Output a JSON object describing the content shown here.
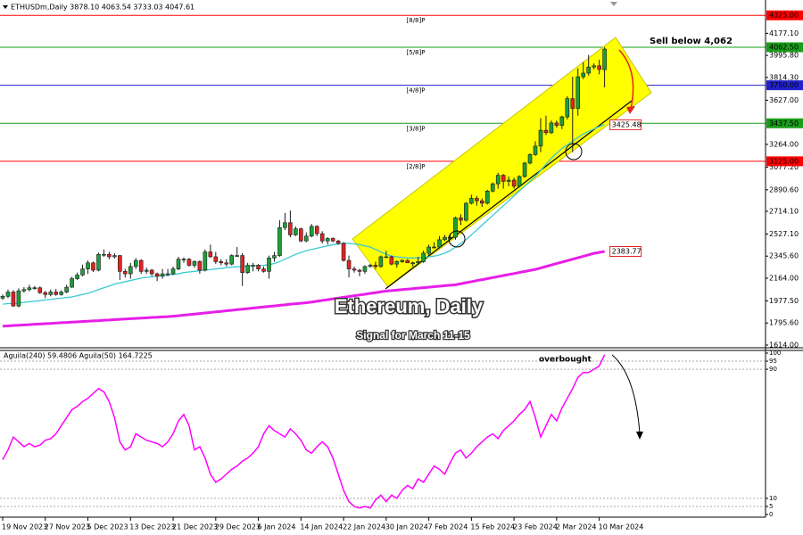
{
  "chart_data": {
    "type": "candlestick",
    "header": "ETHUSDm,Daily  3878.10 4063.54 3733.03 4047.61",
    "title": "Ethereum, Daily",
    "subtitle": "Signal for March 11-15",
    "annotations": {
      "sell": "Sell below 4,062",
      "overbought": "overbought"
    },
    "up_color": "#1e9e3a",
    "down_color": "#e02424",
    "ylim": [
      1592,
      4451
    ],
    "yticks": [
      {
        "value": 1614,
        "label": "1614.00"
      },
      {
        "value": 1795.6,
        "label": "1795.60"
      },
      {
        "value": 1977.5,
        "label": "1977.50"
      },
      {
        "value": 2164,
        "label": "2164.00"
      },
      {
        "value": 2345.6,
        "label": "2345.60"
      },
      {
        "value": 2527.1,
        "label": "2527.10"
      },
      {
        "value": 2714.1,
        "label": "2714.10"
      },
      {
        "value": 2890.6,
        "label": "2890.60"
      },
      {
        "value": 3077.2,
        "label": "3077.20"
      },
      {
        "value": 3264,
        "label": "3264.00"
      },
      {
        "value": 3627,
        "label": "3627.00"
      },
      {
        "value": 3814.3,
        "label": "3814.30"
      },
      {
        "value": 3995.8,
        "label": "3995.80"
      },
      {
        "value": 4177.1,
        "label": "4177.10"
      }
    ],
    "levels": [
      {
        "name": "[8/8]P",
        "value": 4325,
        "label": "4325.00",
        "color": "#ff0000"
      },
      {
        "name": "[5/8]P",
        "value": 4062.5,
        "label": "4062.50",
        "color": "#1a9c1a"
      },
      {
        "name": "[4/8]P",
        "value": 3750,
        "label": "3750.00",
        "color": "#2222cc"
      },
      {
        "name": "[3/8]P",
        "value": 3437.5,
        "label": "3437.50",
        "color": "#1a9c1a"
      },
      {
        "name": "[2/8]P",
        "value": 3125,
        "label": "3125.00",
        "color": "#ff0000"
      }
    ],
    "x": [
      "19 Nov 2023",
      "20 Nov 2023",
      "21 Nov 2023",
      "22 Nov 2023",
      "23 Nov 2023",
      "24 Nov 2023",
      "25 Nov 2023",
      "26 Nov 2023",
      "27 Nov 2023",
      "28 Nov 2023",
      "29 Nov 2023",
      "30 Nov 2023",
      "1 Dec 2023",
      "2 Dec 2023",
      "3 Dec 2023",
      "4 Dec 2023",
      "5 Dec 2023",
      "6 Dec 2023",
      "7 Dec 2023",
      "8 Dec 2023",
      "9 Dec 2023",
      "10 Dec 2023",
      "11 Dec 2023",
      "12 Dec 2023",
      "13 Dec 2023",
      "14 Dec 2023",
      "15 Dec 2023",
      "16 Dec 2023",
      "17 Dec 2023",
      "18 Dec 2023",
      "19 Dec 2023",
      "20 Dec 2023",
      "21 Dec 2023",
      "22 Dec 2023",
      "23 Dec 2023",
      "24 Dec 2023",
      "25 Dec 2023",
      "26 Dec 2023",
      "27 Dec 2023",
      "28 Dec 2023",
      "29 Dec 2023",
      "30 Dec 2023",
      "31 Dec 2023",
      "1 Jan 2024",
      "2 Jan 2024",
      "3 Jan 2024",
      "4 Jan 2024",
      "5 Jan 2024",
      "6 Jan 2024",
      "7 Jan 2024",
      "8 Jan 2024",
      "9 Jan 2024",
      "10 Jan 2024",
      "11 Jan 2024",
      "12 Jan 2024",
      "13 Jan 2024",
      "14 Jan 2024",
      "15 Jan 2024",
      "16 Jan 2024",
      "17 Jan 2024",
      "18 Jan 2024",
      "19 Jan 2024",
      "20 Jan 2024",
      "21 Jan 2024",
      "22 Jan 2024",
      "23 Jan 2024",
      "24 Jan 2024",
      "25 Jan 2024",
      "26 Jan 2024",
      "27 Jan 2024",
      "28 Jan 2024",
      "29 Jan 2024",
      "30 Jan 2024",
      "31 Jan 2024",
      "1 Feb 2024",
      "2 Feb 2024",
      "3 Feb 2024",
      "4 Feb 2024",
      "5 Feb 2024",
      "6 Feb 2024",
      "7 Feb 2024",
      "8 Feb 2024",
      "9 Feb 2024",
      "10 Feb 2024",
      "11 Feb 2024",
      "12 Feb 2024",
      "13 Feb 2024",
      "14 Feb 2024",
      "15 Feb 2024",
      "16 Feb 2024",
      "17 Feb 2024",
      "18 Feb 2024",
      "19 Feb 2024",
      "20 Feb 2024",
      "21 Feb 2024",
      "22 Feb 2024",
      "23 Feb 2024",
      "24 Feb 2024",
      "25 Feb 2024",
      "26 Feb 2024",
      "27 Feb 2024",
      "28 Feb 2024",
      "29 Feb 2024",
      "1 Mar 2024",
      "2 Mar 2024",
      "3 Mar 2024",
      "4 Mar 2024",
      "5 Mar 2024",
      "6 Mar 2024",
      "7 Mar 2024",
      "8 Mar 2024",
      "9 Mar 2024",
      "10 Mar 2024",
      "11 Mar 2024"
    ],
    "xticks": [
      "19 Nov 2023",
      "27 Nov 2023",
      "5 Dec 2023",
      "13 Dec 2023",
      "21 Dec 2023",
      "29 Dec 2023",
      "6 Jan 2024",
      "14 Jan 2024",
      "22 Jan 2024",
      "30 Jan 2024",
      "7 Feb 2024",
      "15 Feb 2024",
      "23 Feb 2024",
      "2 Mar 2024",
      "10 Mar 2024"
    ],
    "ohlc": [
      [
        2000,
        2030,
        1985,
        2015
      ],
      [
        2015,
        2070,
        2000,
        2050
      ],
      [
        2050,
        2065,
        1930,
        1935
      ],
      [
        1935,
        2080,
        1925,
        2060
      ],
      [
        2060,
        2090,
        2045,
        2070
      ],
      [
        2070,
        2110,
        2055,
        2085
      ],
      [
        2085,
        2100,
        2070,
        2085
      ],
      [
        2085,
        2095,
        2035,
        2045
      ],
      [
        2045,
        2060,
        2000,
        2030
      ],
      [
        2030,
        2070,
        2015,
        2050
      ],
      [
        2050,
        2075,
        2020,
        2030
      ],
      [
        2030,
        2065,
        2020,
        2050
      ],
      [
        2050,
        2110,
        2040,
        2090
      ],
      [
        2090,
        2175,
        2085,
        2160
      ],
      [
        2160,
        2210,
        2150,
        2190
      ],
      [
        2190,
        2275,
        2180,
        2240
      ],
      [
        2240,
        2310,
        2200,
        2290
      ],
      [
        2290,
        2300,
        2215,
        2230
      ],
      [
        2230,
        2375,
        2220,
        2360
      ],
      [
        2360,
        2400,
        2340,
        2360
      ],
      [
        2360,
        2380,
        2320,
        2340
      ],
      [
        2340,
        2370,
        2325,
        2350
      ],
      [
        2350,
        2355,
        2150,
        2220
      ],
      [
        2220,
        2240,
        2170,
        2200
      ],
      [
        2200,
        2290,
        2160,
        2260
      ],
      [
        2260,
        2330,
        2240,
        2310
      ],
      [
        2310,
        2320,
        2200,
        2220
      ],
      [
        2220,
        2250,
        2200,
        2230
      ],
      [
        2230,
        2240,
        2180,
        2200
      ],
      [
        2200,
        2210,
        2140,
        2180
      ],
      [
        2180,
        2240,
        2160,
        2200
      ],
      [
        2200,
        2240,
        2180,
        2200
      ],
      [
        2200,
        2260,
        2190,
        2240
      ],
      [
        2240,
        2340,
        2230,
        2320
      ],
      [
        2320,
        2335,
        2290,
        2320
      ],
      [
        2320,
        2330,
        2260,
        2270
      ],
      [
        2270,
        2310,
        2250,
        2300
      ],
      [
        2300,
        2310,
        2200,
        2230
      ],
      [
        2230,
        2400,
        2220,
        2380
      ],
      [
        2380,
        2440,
        2330,
        2340
      ],
      [
        2340,
        2380,
        2280,
        2300
      ],
      [
        2300,
        2320,
        2270,
        2290
      ],
      [
        2290,
        2320,
        2260,
        2280
      ],
      [
        2280,
        2360,
        2270,
        2350
      ],
      [
        2350,
        2420,
        2340,
        2350
      ],
      [
        2350,
        2370,
        2100,
        2210
      ],
      [
        2210,
        2290,
        2200,
        2270
      ],
      [
        2270,
        2290,
        2220,
        2270
      ],
      [
        2270,
        2280,
        2220,
        2240
      ],
      [
        2240,
        2260,
        2210,
        2220
      ],
      [
        2220,
        2350,
        2160,
        2330
      ],
      [
        2330,
        2380,
        2300,
        2350
      ],
      [
        2350,
        2640,
        2340,
        2580
      ],
      [
        2580,
        2700,
        2560,
        2620
      ],
      [
        2620,
        2720,
        2500,
        2520
      ],
      [
        2520,
        2590,
        2510,
        2570
      ],
      [
        2570,
        2580,
        2460,
        2470
      ],
      [
        2470,
        2540,
        2460,
        2510
      ],
      [
        2510,
        2610,
        2500,
        2590
      ],
      [
        2590,
        2600,
        2510,
        2530
      ],
      [
        2530,
        2550,
        2450,
        2470
      ],
      [
        2470,
        2500,
        2440,
        2490
      ],
      [
        2490,
        2500,
        2460,
        2470
      ],
      [
        2470,
        2480,
        2440,
        2450
      ],
      [
        2450,
        2460,
        2300,
        2310
      ],
      [
        2310,
        2350,
        2170,
        2240
      ],
      [
        2240,
        2260,
        2210,
        2230
      ],
      [
        2230,
        2240,
        2180,
        2220
      ],
      [
        2220,
        2270,
        2200,
        2260
      ],
      [
        2260,
        2280,
        2250,
        2270
      ],
      [
        2270,
        2300,
        2240,
        2260
      ],
      [
        2260,
        2350,
        2250,
        2340
      ],
      [
        2340,
        2390,
        2330,
        2340
      ],
      [
        2340,
        2350,
        2270,
        2280
      ],
      [
        2280,
        2310,
        2250,
        2300
      ],
      [
        2300,
        2320,
        2290,
        2310
      ],
      [
        2310,
        2320,
        2290,
        2290
      ],
      [
        2290,
        2300,
        2260,
        2290
      ],
      [
        2290,
        2340,
        2280,
        2300
      ],
      [
        2300,
        2390,
        2290,
        2370
      ],
      [
        2370,
        2440,
        2350,
        2420
      ],
      [
        2420,
        2460,
        2410,
        2420
      ],
      [
        2420,
        2510,
        2410,
        2480
      ],
      [
        2480,
        2520,
        2470,
        2500
      ],
      [
        2500,
        2530,
        2480,
        2500
      ],
      [
        2500,
        2670,
        2480,
        2660
      ],
      [
        2660,
        2690,
        2600,
        2640
      ],
      [
        2640,
        2790,
        2630,
        2780
      ],
      [
        2780,
        2850,
        2770,
        2820
      ],
      [
        2820,
        2840,
        2760,
        2800
      ],
      [
        2800,
        2820,
        2750,
        2780
      ],
      [
        2780,
        2890,
        2770,
        2880
      ],
      [
        2880,
        2950,
        2870,
        2940
      ],
      [
        2940,
        3030,
        2900,
        3010
      ],
      [
        3010,
        3020,
        2900,
        2960
      ],
      [
        2960,
        3000,
        2920,
        2970
      ],
      [
        2970,
        2990,
        2900,
        2920
      ],
      [
        2920,
        3010,
        2910,
        3000
      ],
      [
        3000,
        3120,
        2990,
        3110
      ],
      [
        3110,
        3190,
        3100,
        3180
      ],
      [
        3180,
        3290,
        3170,
        3250
      ],
      [
        3250,
        3480,
        3200,
        3380
      ],
      [
        3380,
        3500,
        3340,
        3360
      ],
      [
        3360,
        3460,
        3350,
        3440
      ],
      [
        3440,
        3460,
        3400,
        3420
      ],
      [
        3420,
        3500,
        3390,
        3490
      ],
      [
        3490,
        3660,
        3470,
        3640
      ],
      [
        3640,
        3820,
        3200,
        3560
      ],
      [
        3560,
        3890,
        3500,
        3820
      ],
      [
        3820,
        3940,
        3800,
        3850
      ],
      [
        3850,
        4000,
        3830,
        3900
      ],
      [
        3900,
        3930,
        3880,
        3910
      ],
      [
        3910,
        3960,
        3840,
        3880
      ],
      [
        3878.1,
        4063.54,
        3733.03,
        4047.61
      ]
    ],
    "overlays": [
      {
        "color": "#3cc9d4",
        "values": [
          1950,
          1955,
          1955,
          1960,
          1965,
          1970,
          1975,
          1980,
          1985,
          1990,
          1995,
          2000,
          2005,
          2010,
          2020,
          2030,
          2040,
          2055,
          2070,
          2085,
          2100,
          2115,
          2125,
          2135,
          2145,
          2155,
          2165,
          2170,
          2175,
          2180,
          2185,
          2190,
          2195,
          2200,
          2210,
          2215,
          2220,
          2225,
          2230,
          2235,
          2240,
          2245,
          2250,
          2255,
          2258,
          2260,
          2262,
          2265,
          2268,
          2270,
          2275,
          2285,
          2300,
          2320,
          2340,
          2360,
          2375,
          2390,
          2400,
          2410,
          2420,
          2430,
          2440,
          2445,
          2450,
          2450,
          2445,
          2440,
          2430,
          2420,
          2400,
          2380,
          2360,
          2345,
          2340,
          2335,
          2330,
          2330,
          2330,
          2335,
          2340,
          2345,
          2355,
          2370,
          2390,
          2420,
          2450,
          2480,
          2520,
          2560,
          2600,
          2640,
          2680,
          2720,
          2760,
          2800,
          2840,
          2880,
          2920,
          2960,
          3000,
          3050,
          3100,
          3150,
          3190,
          3230,
          3260,
          3290,
          3320,
          3350,
          3370,
          3390,
          3410,
          3425.48
        ]
      },
      {
        "color": "#e81ee8",
        "values": [
          1770,
          1772,
          1775,
          1777,
          1780,
          1782,
          1785,
          1787,
          1790,
          1792,
          1795,
          1798,
          1800,
          1803,
          1805,
          1808,
          1810,
          1813,
          1815,
          1818,
          1820,
          1823,
          1826,
          1828,
          1831,
          1833,
          1836,
          1838,
          1841,
          1843,
          1846,
          1848,
          1851,
          1855,
          1860,
          1864,
          1869,
          1873,
          1878,
          1882,
          1887,
          1891,
          1896,
          1900,
          1905,
          1909,
          1914,
          1918,
          1923,
          1927,
          1932,
          1936,
          1941,
          1945,
          1950,
          1954,
          1958,
          1962,
          1968,
          1974,
          1981,
          1987,
          1994,
          2000,
          2007,
          2013,
          2020,
          2026,
          2032,
          2039,
          2045,
          2052,
          2058,
          2062,
          2066,
          2070,
          2074,
          2078,
          2082,
          2086,
          2090,
          2094,
          2098,
          2102,
          2106,
          2110,
          2118,
          2127,
          2135,
          2144,
          2152,
          2160,
          2169,
          2177,
          2186,
          2194,
          2202,
          2211,
          2219,
          2228,
          2236,
          2248,
          2260,
          2272,
          2284,
          2296,
          2308,
          2320,
          2332,
          2344,
          2356,
          2368,
          2376,
          2383.77
        ]
      }
    ],
    "indicator": {
      "type": "line",
      "header": "Aguila(240) 59.4806 Aguila(50) 164.7225",
      "color": "#ff00ff",
      "ylim": [
        0,
        100
      ],
      "yticks": [
        0,
        5,
        10,
        90,
        95,
        100
      ],
      "values": [
        34,
        40,
        48,
        45,
        42,
        44,
        42,
        43,
        46,
        47,
        50,
        55,
        60,
        65,
        67,
        70,
        72,
        75,
        78,
        76,
        70,
        60,
        45,
        40,
        42,
        50,
        48,
        46,
        45,
        44,
        42,
        45,
        50,
        58,
        62,
        55,
        40,
        42,
        35,
        25,
        20,
        22,
        25,
        28,
        30,
        33,
        35,
        38,
        42,
        50,
        55,
        52,
        50,
        48,
        53,
        50,
        46,
        40,
        38,
        42,
        45,
        42,
        35,
        25,
        15,
        8,
        5,
        4,
        5,
        4,
        9,
        12,
        8,
        12,
        10,
        15,
        18,
        16,
        22,
        20,
        25,
        30,
        28,
        25,
        32,
        38,
        40,
        35,
        38,
        42,
        45,
        48,
        50,
        47,
        52,
        55,
        58,
        62,
        65,
        70,
        60,
        48,
        55,
        62,
        58,
        66,
        72,
        78,
        85,
        88,
        88,
        90,
        92,
        99
      ]
    }
  }
}
